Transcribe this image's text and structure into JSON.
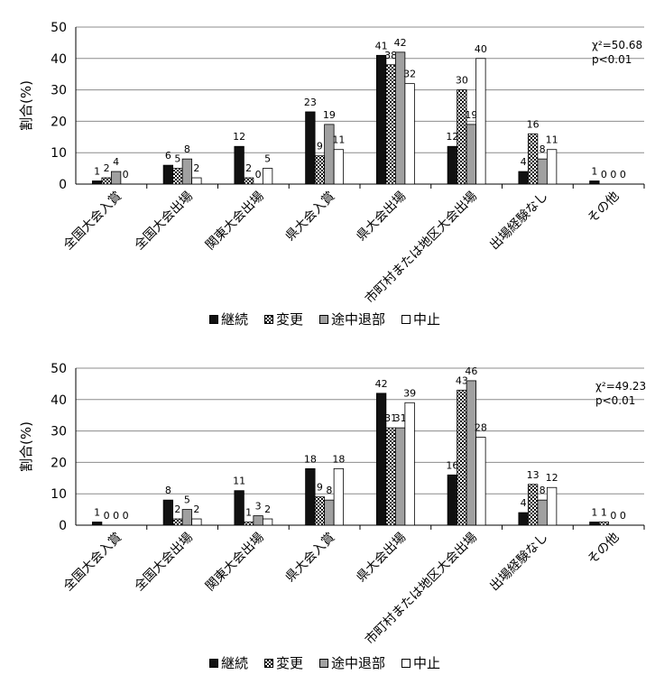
{
  "series_colors": {
    "継続": "#111111",
    "変更": "hatch",
    "途中退部": "#a0a0a0",
    "中止": "#ffffff"
  },
  "chart_data": [
    {
      "type": "bar",
      "categories": [
        "全国大会入賞",
        "全国大会出場",
        "関東大会出場",
        "県大会入賞",
        "県大会出場",
        "市町村または地区大会出場",
        "出場経験なし",
        "その他"
      ],
      "series": [
        {
          "name": "継続",
          "values": [
            1,
            6,
            12,
            23,
            41,
            12,
            4,
            1
          ]
        },
        {
          "name": "変更",
          "values": [
            2,
            5,
            2,
            9,
            38,
            30,
            16,
            0
          ]
        },
        {
          "name": "途中退部",
          "values": [
            4,
            8,
            0,
            19,
            42,
            19,
            8,
            0
          ]
        },
        {
          "name": "中止",
          "values": [
            0,
            2,
            5,
            11,
            32,
            40,
            11,
            0
          ]
        }
      ],
      "ylabel": "割合(%)",
      "ylim": [
        0,
        50
      ],
      "yticks": [
        0,
        10,
        20,
        30,
        40,
        50
      ],
      "grid": true,
      "legend": "bottom",
      "stat_lines": [
        "χ²=50.68",
        "p<0.01"
      ]
    },
    {
      "type": "bar",
      "categories": [
        "全国大会入賞",
        "全国大会出場",
        "関東大会出場",
        "県大会入賞",
        "県大会出場",
        "市町村または地区大会出場",
        "出場経験なし",
        "その他"
      ],
      "series": [
        {
          "name": "継続",
          "values": [
            1,
            8,
            11,
            18,
            42,
            16,
            4,
            1
          ]
        },
        {
          "name": "変更",
          "values": [
            0,
            2,
            1,
            9,
            31,
            43,
            13,
            1
          ]
        },
        {
          "name": "途中退部",
          "values": [
            0,
            5,
            3,
            8,
            31,
            46,
            8,
            0
          ]
        },
        {
          "name": "中止",
          "values": [
            0,
            2,
            2,
            18,
            39,
            28,
            12,
            0
          ]
        }
      ],
      "ylabel": "割合(%)",
      "ylim": [
        0,
        50
      ],
      "yticks": [
        0,
        10,
        20,
        30,
        40,
        50
      ],
      "grid": true,
      "legend": "bottom",
      "stat_lines": [
        "χ²=49.23",
        "p<0.01"
      ]
    }
  ]
}
